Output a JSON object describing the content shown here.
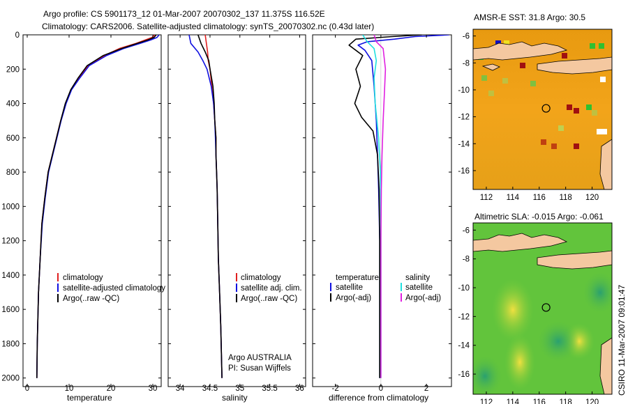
{
  "header": {
    "line1": "Argo profile: CS 5901173_12 01-Mar-2007 20070302_137 11.375S 116.52E",
    "line2": "Climatology: CARS2006. Satellite-adjusted climatology: synTS_20070302.nc (0.43d later)"
  },
  "footer": {
    "stamp": "CSIRO 11-Mar-2007 09:01:47"
  },
  "chart_data": [
    {
      "type": "line",
      "id": "temperature",
      "xlabel": "temperature",
      "ylabel": "",
      "xlim": [
        -1,
        32
      ],
      "ylim": [
        2050,
        0
      ],
      "xticks": [
        0,
        10,
        20,
        30
      ],
      "yticks": [
        0,
        200,
        400,
        600,
        800,
        1000,
        1200,
        1400,
        1600,
        1800,
        2000
      ],
      "legend": [
        "climatology",
        "satellite-adjusted climatology",
        "Argo(..raw -QC)"
      ],
      "series": [
        {
          "name": "climatology",
          "color": "#e02020",
          "x": [
            30.5,
            29.8,
            28.2,
            26,
            22,
            18.5,
            14.5,
            12.5,
            10.5,
            9.2,
            8,
            7,
            6,
            5,
            4.2,
            3.5,
            3.1,
            2.7,
            2.4,
            2.3
          ],
          "y": [
            0,
            15,
            30,
            50,
            80,
            120,
            180,
            250,
            320,
            400,
            500,
            600,
            700,
            800,
            950,
            1100,
            1300,
            1500,
            1800,
            2000
          ]
        },
        {
          "name": "satellite-adjusted climatology",
          "color": "#1010e0",
          "x": [
            31.5,
            31,
            29.5,
            27,
            23,
            19,
            14.8,
            12.6,
            10.6,
            9.3,
            8.1,
            7.1,
            6.1,
            5.1,
            4.3,
            3.6,
            3.1,
            2.7,
            2.4,
            2.3
          ],
          "y": [
            0,
            15,
            30,
            50,
            80,
            120,
            180,
            250,
            320,
            400,
            500,
            600,
            700,
            800,
            950,
            1100,
            1300,
            1500,
            1800,
            2000
          ]
        },
        {
          "name": "Argo(..raw -QC)",
          "color": "#000000",
          "x": [
            30.8,
            30.3,
            28.8,
            26.3,
            22.5,
            18.2,
            14.3,
            12.2,
            10.4,
            9.1,
            8,
            7,
            6,
            5,
            4.2,
            3.5,
            3.1,
            2.7,
            2.4,
            2.3
          ],
          "y": [
            0,
            15,
            30,
            50,
            80,
            120,
            180,
            250,
            320,
            400,
            500,
            600,
            700,
            800,
            950,
            1100,
            1300,
            1500,
            1800,
            2000
          ]
        }
      ]
    },
    {
      "type": "line",
      "id": "salinity",
      "xlabel": "salinity",
      "xlim": [
        33.8,
        36.1
      ],
      "ylim": [
        2050,
        0
      ],
      "xticks": [
        34,
        34.5,
        35,
        35.5,
        36
      ],
      "legend": [
        "climatology",
        "satellite adj. clim.",
        "Argo(..raw -QC)"
      ],
      "annotation": [
        "Argo AUSTRALIA",
        "PI: Susan Wijffels"
      ],
      "series": [
        {
          "name": "climatology",
          "color": "#e02020",
          "x": [
            34.42,
            34.44,
            34.46,
            34.47,
            34.5,
            34.53,
            34.56,
            34.58,
            34.6,
            34.6,
            34.61,
            34.62,
            34.63,
            34.64,
            34.66,
            34.68,
            34.7
          ],
          "y": [
            0,
            50,
            100,
            150,
            200,
            300,
            400,
            500,
            600,
            700,
            800,
            900,
            1100,
            1300,
            1500,
            1700,
            2000
          ]
        },
        {
          "name": "satellite adj. clim.",
          "color": "#1010e0",
          "x": [
            34.15,
            34.18,
            34.3,
            34.38,
            34.45,
            34.52,
            34.56,
            34.58,
            34.59,
            34.6,
            34.61,
            34.62,
            34.63,
            34.64,
            34.66,
            34.68,
            34.7
          ],
          "y": [
            0,
            50,
            100,
            150,
            200,
            300,
            400,
            500,
            600,
            700,
            800,
            900,
            1100,
            1300,
            1500,
            1700,
            2000
          ]
        },
        {
          "name": "Argo(..raw -QC)",
          "color": "#000000",
          "x": [
            34.3,
            34.35,
            34.42,
            34.48,
            34.5,
            34.55,
            34.57,
            34.58,
            34.6,
            34.6,
            34.61,
            34.62,
            34.63,
            34.64,
            34.66,
            34.68,
            34.7
          ],
          "y": [
            0,
            50,
            100,
            150,
            200,
            300,
            400,
            500,
            600,
            700,
            800,
            900,
            1100,
            1300,
            1500,
            1700,
            2000
          ]
        }
      ]
    },
    {
      "type": "line",
      "id": "difference",
      "xlabel": "difference from climatology",
      "xlim": [
        -3,
        3.1
      ],
      "ylim": [
        2050,
        0
      ],
      "xticks": [
        -2,
        0,
        2
      ],
      "legend_groups": [
        {
          "title": "temperature",
          "items": [
            "satellite",
            "Argo(-adj)"
          ]
        },
        {
          "title": "salinity",
          "items": [
            "satellite",
            "Argo(-adj)"
          ]
        }
      ],
      "series": [
        {
          "name": "temperature satellite",
          "color": "#1010e0",
          "x": [
            3,
            1.5,
            0.6,
            -0.6,
            -1,
            -0.7,
            -0.4,
            -0.3,
            -0.2,
            -0.15,
            -0.1,
            -0.05,
            -0.05,
            -0.05,
            -0.05
          ],
          "y": [
            0,
            10,
            25,
            40,
            60,
            90,
            150,
            300,
            500,
            700,
            900,
            1200,
            1500,
            1800,
            2000
          ]
        },
        {
          "name": "temperature Argo(-adj)",
          "color": "#000000",
          "x": [
            1.8,
            0.5,
            -1.1,
            -1.4,
            -0.8,
            -1.1,
            -0.9,
            -1.15,
            -0.85,
            -0.35,
            -0.15,
            -0.08,
            -0.05,
            -0.05,
            -0.05
          ],
          "y": [
            0,
            10,
            25,
            60,
            120,
            200,
            300,
            400,
            480,
            560,
            700,
            900,
            1200,
            1600,
            2000
          ]
        },
        {
          "name": "salinity satellite",
          "color": "#20e0e0",
          "x": [
            -0.8,
            -0.6,
            -0.3,
            -0.2,
            -0.3,
            -0.25,
            -0.1,
            -0.02,
            0,
            0,
            0
          ],
          "y": [
            0,
            40,
            80,
            150,
            250,
            400,
            600,
            800,
            1200,
            1600,
            2000
          ]
        },
        {
          "name": "salinity Argo(-adj)",
          "color": "#e020e0",
          "x": [
            -0.3,
            -0.2,
            0.1,
            0.2,
            0.15,
            0.1,
            0.05,
            0.02,
            0,
            0,
            0
          ],
          "y": [
            0,
            40,
            80,
            200,
            350,
            500,
            700,
            900,
            1200,
            1600,
            2000
          ]
        }
      ]
    },
    {
      "type": "heatmap",
      "id": "sst-map",
      "title": "AMSR-E SST: 31.8  Argo: 30.5",
      "xticks": [
        112,
        114,
        116,
        118,
        120
      ],
      "yticks": [
        -6,
        -8,
        -10,
        -12,
        -14,
        -16
      ],
      "xlim": [
        111,
        121.5
      ],
      "ylim": [
        -17.4,
        -5.5
      ],
      "float_position": [
        116.52,
        -11.375
      ]
    },
    {
      "type": "heatmap",
      "id": "sla-map",
      "title": "Altimetric SLA: -0.015  Argo: -0.061",
      "xticks": [
        112,
        114,
        116,
        118,
        120
      ],
      "yticks": [
        -6,
        -8,
        -10,
        -12,
        -14,
        -16
      ],
      "xlim": [
        111,
        121.5
      ],
      "ylim": [
        -17.4,
        -5.5
      ],
      "float_position": [
        116.52,
        -11.375
      ]
    }
  ]
}
